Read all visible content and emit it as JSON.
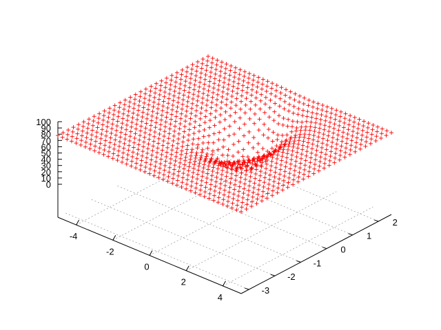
{
  "chart_data": {
    "type": "scatter",
    "variant": "3d-surface-points",
    "point_symbol": "plus",
    "point_color": "#ff0000",
    "grid": true,
    "x_range": [
      -5,
      5
    ],
    "y_range": [
      -3.3,
      2.5
    ],
    "z_range": [
      0,
      100
    ],
    "x_ticks": [
      -4,
      -2,
      0,
      2,
      4
    ],
    "x_tick_labels": [
      "-4",
      "-2",
      "0",
      "2",
      "4"
    ],
    "y_ticks": [
      -3,
      -2,
      -1,
      0,
      1,
      2
    ],
    "y_tick_labels": [
      "-3",
      "-2",
      "-1",
      "0",
      "1",
      "2"
    ],
    "z_ticks": [
      0,
      10,
      20,
      30,
      40,
      50,
      60,
      70,
      80,
      90,
      100
    ],
    "z_tick_labels": [
      "0",
      "10",
      "20",
      "30",
      "40",
      "50",
      "60",
      "70",
      "80",
      "90",
      "100"
    ],
    "surface": {
      "description_of_shape": "flat plateau with a central depression",
      "plateau_value": 78,
      "dip_center": [
        0.4,
        0.2
      ],
      "dip_depth": 62,
      "dip_width": 1.3,
      "grid_x": {
        "from": -5,
        "to": 5,
        "count": 41
      },
      "grid_y": {
        "from": -3.3,
        "to": 2.5,
        "count": 30
      }
    }
  }
}
